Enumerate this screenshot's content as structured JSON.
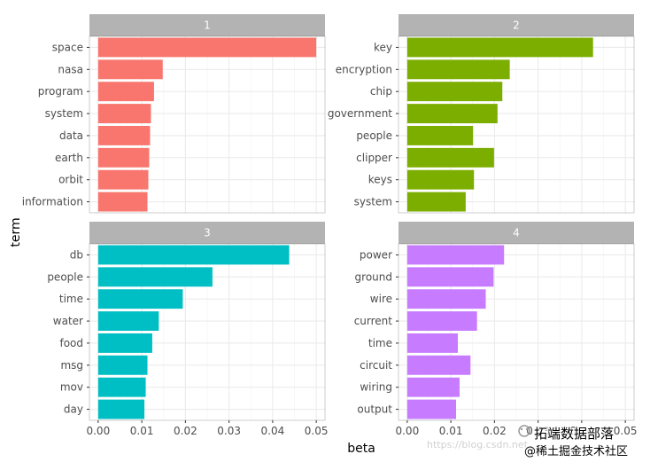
{
  "chart_data": {
    "type": "bar",
    "orientation": "horizontal",
    "xlabel": "beta",
    "ylabel": "term",
    "xlim": [
      -0.002,
      0.052
    ],
    "x_ticks": [
      "0.00",
      "0.01",
      "0.02",
      "0.03",
      "0.04",
      "0.05"
    ],
    "x_tick_values": [
      0,
      0.01,
      0.02,
      0.03,
      0.04,
      0.05
    ],
    "grid": true,
    "facets": [
      {
        "label": "1",
        "color": "#F8766D",
        "terms": [
          "space",
          "nasa",
          "program",
          "system",
          "data",
          "earth",
          "orbit",
          "information"
        ],
        "values": [
          0.05,
          0.0148,
          0.0128,
          0.0121,
          0.0119,
          0.0117,
          0.0115,
          0.0113
        ]
      },
      {
        "label": "2",
        "color": "#7CAE00",
        "terms": [
          "key",
          "encryption",
          "chip",
          "government",
          "people",
          "clipper",
          "keys",
          "system"
        ],
        "values": [
          0.0426,
          0.0235,
          0.0218,
          0.0207,
          0.0151,
          0.0199,
          0.0153,
          0.0134
        ]
      },
      {
        "label": "3",
        "color": "#00BFC4",
        "terms": [
          "db",
          "people",
          "time",
          "water",
          "food",
          "msg",
          "mov",
          "day"
        ],
        "values": [
          0.0438,
          0.0262,
          0.0194,
          0.0139,
          0.0124,
          0.0113,
          0.0109,
          0.0106
        ]
      },
      {
        "label": "4",
        "color": "#C77CFF",
        "terms": [
          "power",
          "ground",
          "wire",
          "current",
          "time",
          "circuit",
          "wiring",
          "output"
        ],
        "values": [
          0.0222,
          0.0198,
          0.018,
          0.016,
          0.0116,
          0.0145,
          0.012,
          0.0112
        ]
      }
    ]
  },
  "watermark": {
    "blog_text": "https://blog.csdn.net",
    "brand_text": "拓端数据部落",
    "sub_text": "@稀土掘金技术社区"
  }
}
